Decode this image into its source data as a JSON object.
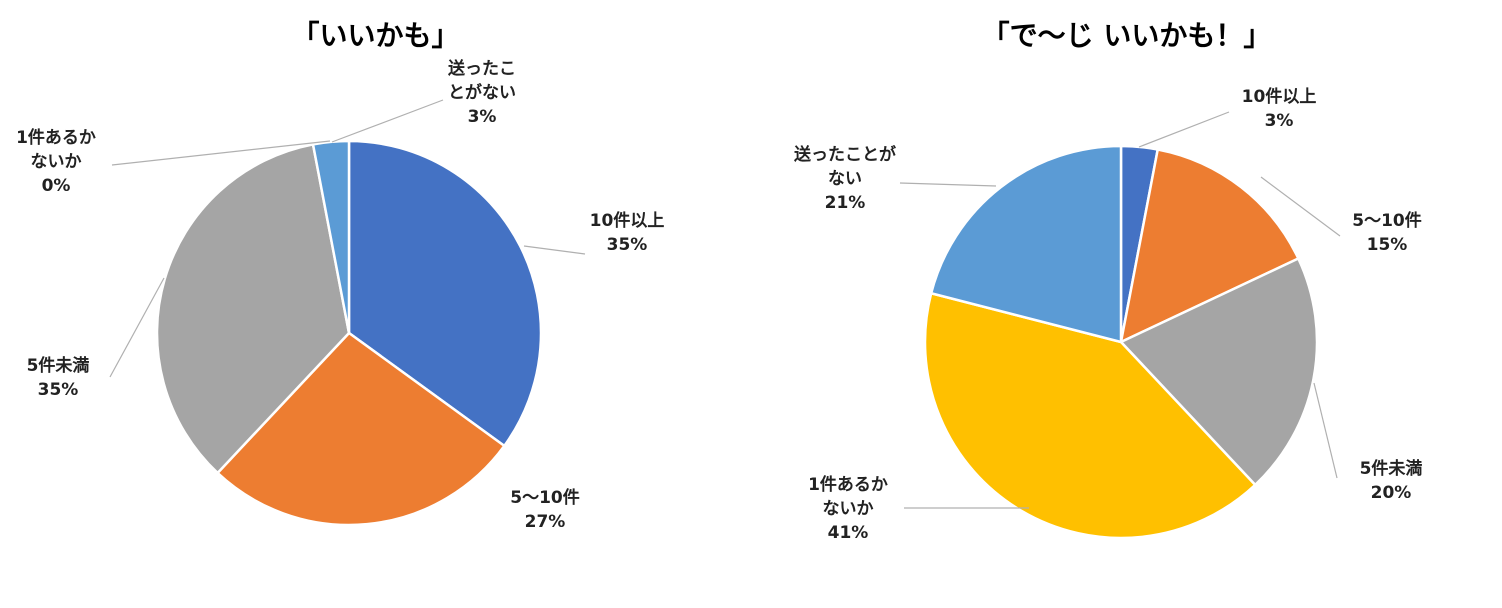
{
  "chart_data": [
    {
      "type": "pie",
      "title": "「いいかも」",
      "start_angle_deg": 0,
      "direction": "clockwise",
      "slices": [
        {
          "label": "10件以上",
          "value": 35,
          "pct_label": "35%",
          "color": "#4472C4"
        },
        {
          "label": "5〜10件",
          "value": 27,
          "pct_label": "27%",
          "color": "#ED7D31"
        },
        {
          "label": "5件未満",
          "value": 35,
          "pct_label": "35%",
          "color": "#A5A5A5"
        },
        {
          "label": "1件あるかないか",
          "value": 0,
          "pct_label": "0%",
          "color": "#FFC000"
        },
        {
          "label": "送ったことがない",
          "value": 3,
          "pct_label": "3%",
          "color": "#5B9BD5"
        }
      ]
    },
    {
      "type": "pie",
      "title": "「で〜じ いいかも！」",
      "start_angle_deg": 0,
      "direction": "clockwise",
      "slices": [
        {
          "label": "10件以上",
          "value": 3,
          "pct_label": "3%",
          "color": "#4472C4"
        },
        {
          "label": "5〜10件",
          "value": 15,
          "pct_label": "15%",
          "color": "#ED7D31"
        },
        {
          "label": "5件未満",
          "value": 20,
          "pct_label": "20%",
          "color": "#A5A5A5"
        },
        {
          "label": "1件あるかないか",
          "value": 41,
          "pct_label": "41%",
          "color": "#FFC000"
        },
        {
          "label": "送ったことがない",
          "value": 21,
          "pct_label": "21%",
          "color": "#5B9BD5"
        }
      ]
    }
  ]
}
